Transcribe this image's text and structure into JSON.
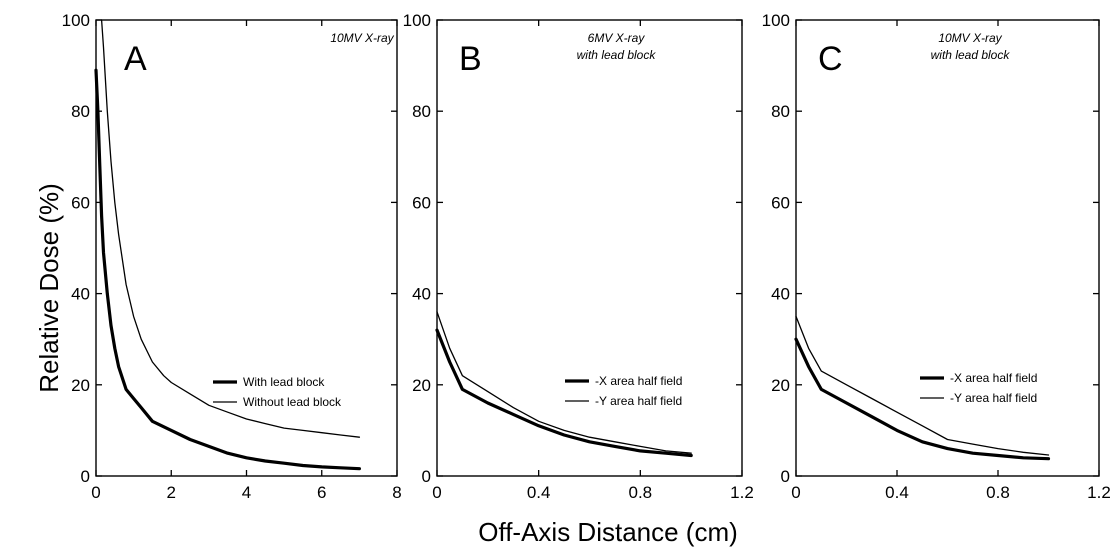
{
  "figure": {
    "xlabel": "Off-Axis Distance (cm)",
    "ylabel": "Relative Dose (%)"
  },
  "chart_data": [
    {
      "type": "line",
      "panel_label": "A",
      "annotation": [
        "10MV X-ray"
      ],
      "xlim": [
        0,
        8
      ],
      "ylim": [
        0,
        100
      ],
      "xticks": [
        0,
        2,
        4,
        6,
        8
      ],
      "xtick_labels": [
        "0",
        "2",
        "4",
        "6",
        "8"
      ],
      "yticks": [
        0,
        20,
        40,
        60,
        80,
        100
      ],
      "ytick_labels": [
        "0",
        "20",
        "40",
        "60",
        "80",
        "100"
      ],
      "legend_position": "center-right",
      "series": [
        {
          "name": "With lead block",
          "style": "thick",
          "x": [
            0,
            0.05,
            0.1,
            0.15,
            0.2,
            0.3,
            0.4,
            0.5,
            0.6,
            0.8,
            1.0,
            1.2,
            1.5,
            2.0,
            2.5,
            3.0,
            3.5,
            4.0,
            4.5,
            5.0,
            5.5,
            6.0,
            6.5,
            7.0
          ],
          "y": [
            89,
            80,
            68,
            57,
            49,
            40,
            33,
            28,
            24,
            19,
            17,
            15,
            12,
            10,
            8,
            6.5,
            5,
            4,
            3.3,
            2.8,
            2.3,
            2.0,
            1.8,
            1.6
          ]
        },
        {
          "name": "Without lead block",
          "style": "thin",
          "x": [
            0.15,
            0.2,
            0.3,
            0.4,
            0.5,
            0.6,
            0.8,
            1.0,
            1.2,
            1.5,
            1.8,
            2.0,
            2.5,
            3.0,
            3.5,
            4.0,
            4.5,
            5.0,
            5.5,
            6.0,
            6.5,
            7.0
          ],
          "y": [
            100,
            94,
            80,
            69,
            60,
            53,
            42,
            35,
            30,
            25,
            22,
            20.5,
            18,
            15.5,
            14,
            12.5,
            11.5,
            10.5,
            10,
            9.5,
            9,
            8.5
          ]
        }
      ]
    },
    {
      "type": "line",
      "panel_label": "B",
      "annotation": [
        "6MV X-ray",
        "with lead block"
      ],
      "xlim": [
        0,
        1.2
      ],
      "ylim": [
        0,
        100
      ],
      "xticks": [
        0,
        0.4,
        0.8,
        1.2
      ],
      "xtick_labels": [
        "0",
        "0.4",
        "0.8",
        "1.2"
      ],
      "yticks": [
        0,
        20,
        40,
        60,
        80,
        100
      ],
      "ytick_labels": [
        "0",
        "20",
        "40",
        "60",
        "80",
        "100"
      ],
      "legend_position": "center-right",
      "series": [
        {
          "name": "-X area half field",
          "style": "thick",
          "x": [
            0,
            0.05,
            0.1,
            0.2,
            0.3,
            0.4,
            0.5,
            0.6,
            0.7,
            0.8,
            0.9,
            1.0
          ],
          "y": [
            32,
            25,
            19,
            16,
            13.5,
            11,
            9,
            7.5,
            6.5,
            5.5,
            5,
            4.5
          ]
        },
        {
          "name": "-Y area half field",
          "style": "thin",
          "x": [
            0,
            0.05,
            0.1,
            0.2,
            0.3,
            0.4,
            0.5,
            0.6,
            0.7,
            0.8,
            0.9,
            1.0
          ],
          "y": [
            36,
            28,
            22,
            18.5,
            15,
            12,
            10,
            8.5,
            7.5,
            6.5,
            5.5,
            5
          ]
        }
      ]
    },
    {
      "type": "line",
      "panel_label": "C",
      "annotation": [
        "10MV X-ray",
        "with lead block"
      ],
      "xlim": [
        0,
        1.2
      ],
      "ylim": [
        0,
        100
      ],
      "xticks": [
        0,
        0.4,
        0.8,
        1.2
      ],
      "xtick_labels": [
        "0",
        "0.4",
        "0.8",
        "1.2"
      ],
      "yticks": [
        0,
        20,
        40,
        60,
        80,
        100
      ],
      "ytick_labels": [
        "0",
        "20",
        "40",
        "60",
        "80",
        "100"
      ],
      "legend_position": "center-right",
      "series": [
        {
          "name": "-X area half field",
          "style": "thick",
          "x": [
            0,
            0.05,
            0.1,
            0.2,
            0.3,
            0.4,
            0.5,
            0.6,
            0.7,
            0.8,
            0.9,
            1.0
          ],
          "y": [
            30,
            24,
            19,
            16,
            13,
            10,
            7.5,
            6,
            5,
            4.5,
            4,
            3.8
          ]
        },
        {
          "name": "-Y area half field",
          "style": "thin",
          "x": [
            0,
            0.05,
            0.1,
            0.2,
            0.3,
            0.4,
            0.5,
            0.6,
            0.7,
            0.8,
            0.9,
            1.0
          ],
          "y": [
            35,
            28,
            23,
            20,
            17,
            14,
            11,
            8,
            7,
            6,
            5.2,
            4.6
          ]
        }
      ]
    }
  ]
}
